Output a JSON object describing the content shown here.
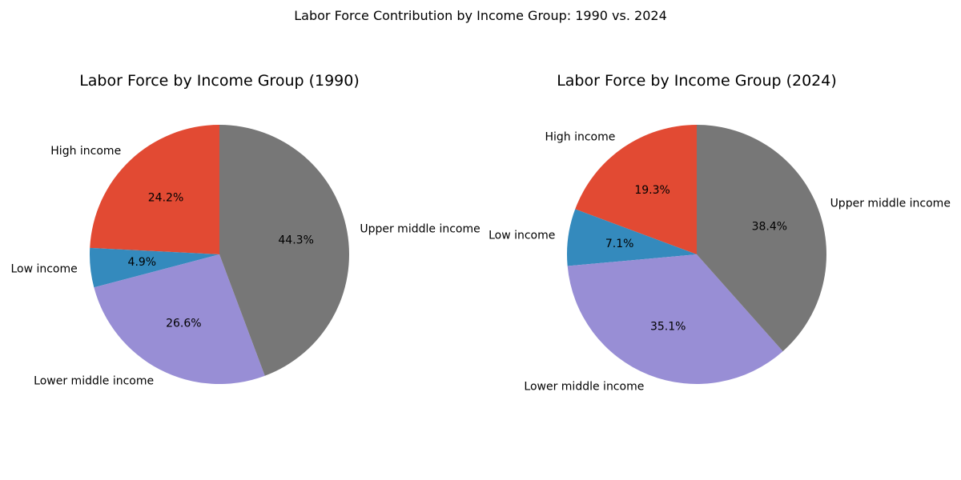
{
  "figure": {
    "suptitle": "Labor Force Contribution by Income Group: 1990 vs. 2024"
  },
  "chart_data": [
    {
      "type": "pie",
      "title": "Labor Force by Income Group (1990)",
      "categories": [
        "High income",
        "Low income",
        "Lower middle income",
        "Upper middle income"
      ],
      "values": [
        24.2,
        4.9,
        26.6,
        44.3
      ],
      "value_labels": [
        "24.2%",
        "4.9%",
        "26.6%",
        "44.3%"
      ],
      "colors": [
        "#E24A33",
        "#348ABD",
        "#988ED5",
        "#777777"
      ],
      "start_angle_deg": 90,
      "direction": "counterclockwise"
    },
    {
      "type": "pie",
      "title": "Labor Force by Income Group (2024)",
      "categories": [
        "High income",
        "Low income",
        "Lower middle income",
        "Upper middle income"
      ],
      "values": [
        19.3,
        7.1,
        35.1,
        38.4
      ],
      "value_labels": [
        "19.3%",
        "7.1%",
        "35.1%",
        "38.4%"
      ],
      "colors": [
        "#E24A33",
        "#348ABD",
        "#988ED5",
        "#777777"
      ],
      "start_angle_deg": 90,
      "direction": "counterclockwise"
    }
  ]
}
